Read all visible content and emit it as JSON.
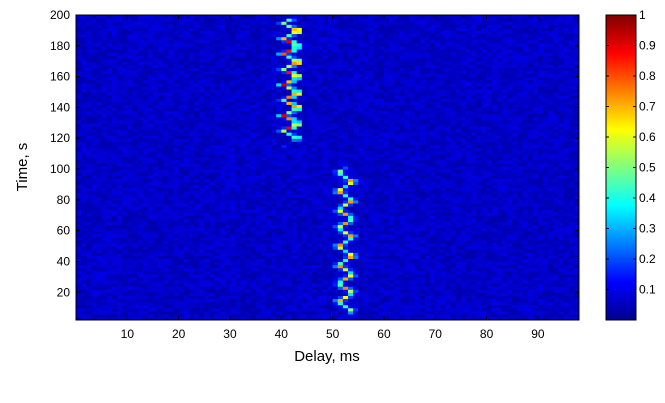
{
  "chart_data": {
    "type": "heatmap",
    "title": "",
    "xlabel": "Delay, ms",
    "ylabel": "Time, s",
    "xlim": [
      0,
      98
    ],
    "ylim": [
      2,
      200
    ],
    "x_ticks": [
      10,
      20,
      30,
      40,
      50,
      60,
      70,
      80,
      90
    ],
    "y_ticks": [
      20,
      40,
      60,
      80,
      100,
      120,
      140,
      160,
      180,
      200
    ],
    "colorbar": {
      "colormap": "jet",
      "range": [
        0,
        1
      ],
      "ticks": [
        0.1,
        0.2,
        0.3,
        0.4,
        0.5,
        0.6,
        0.7,
        0.8,
        0.9,
        1
      ],
      "tick_labels": [
        "0.1",
        "0.2",
        "0.3",
        "0.4",
        "0.5",
        "0.6",
        "0.7",
        "0.8",
        "0.9",
        "1"
      ]
    },
    "background_level": 0.04,
    "series": [
      {
        "time_range": [
          115,
          200
        ],
        "delay_center": 42,
        "oscillation_amplitude": 1.6,
        "oscillation_period": 10,
        "peak_level": 0.95,
        "base_level": 0.45
      },
      {
        "time_range": [
          2,
          103
        ],
        "delay_center": 52.5,
        "oscillation_amplitude": 1.6,
        "oscillation_period": 12,
        "peak_level": 0.75,
        "base_level": 0.35
      }
    ],
    "grid": false
  }
}
